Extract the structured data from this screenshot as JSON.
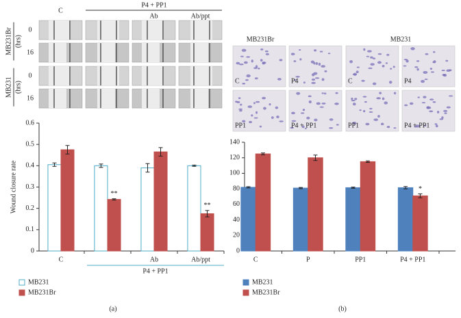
{
  "chart_data": [
    {
      "type": "bar",
      "y_label": "Wound closure rate",
      "categories": [
        "C",
        null,
        "Ab",
        "Ab/ppt"
      ],
      "category_groups": [
        {
          "label": "P4 + PP1",
          "from": 1,
          "to": 3
        }
      ],
      "series": [
        {
          "name": "MB231",
          "color": "#4bacc6",
          "fill": "#ffffff",
          "values": [
            0.405,
            0.4,
            0.39,
            0.4
          ],
          "errors": [
            0.008,
            0.008,
            0.02,
            0.003
          ]
        },
        {
          "name": "MB231Br",
          "color": "#c0504d",
          "values": [
            0.475,
            0.242,
            0.465,
            0.175
          ],
          "errors": [
            0.02,
            0.003,
            0.02,
            0.015
          ],
          "value_notes": [
            null,
            "**",
            null,
            "**"
          ]
        }
      ],
      "ylim": [
        0,
        0.6
      ],
      "yticks": [
        0,
        0.1,
        0.2,
        0.3,
        0.4,
        0.5,
        0.6
      ],
      "grid": false,
      "legend": "bottom-left"
    },
    {
      "type": "bar",
      "categories": [
        "C",
        "P",
        "PP1",
        "P4 + PP1"
      ],
      "series": [
        {
          "name": "MB231",
          "color": "#4f81bd",
          "values": [
            82,
            81,
            81.5,
            81.5
          ],
          "errors": [
            0.8,
            0.8,
            0.8,
            1.5
          ]
        },
        {
          "name": "MB231Br",
          "color": "#c0504d",
          "values": [
            125,
            120,
            115,
            71
          ],
          "errors": [
            1.2,
            3.5,
            1,
            2.5
          ],
          "value_notes": [
            null,
            null,
            null,
            "*"
          ]
        }
      ],
      "ylim": [
        0,
        140
      ],
      "yticks": [
        0,
        20,
        40,
        60,
        80,
        100,
        120,
        140
      ],
      "grid": false,
      "legend": "bottom-left"
    }
  ],
  "figure_a": {
    "panel_label": "(a)",
    "group_label": "P4 + PP1",
    "column_labels": [
      "C",
      null,
      "Ab",
      "Ab/ppt"
    ],
    "row_groups": [
      {
        "name": "MB231Br",
        "unit": "(hrs)",
        "times": [
          "0",
          "16"
        ]
      },
      {
        "name": "MB231",
        "unit": "(hrs)",
        "times": [
          "0",
          "16"
        ]
      }
    ]
  },
  "figure_b": {
    "panel_label": "(b)",
    "column_labels": [
      "MB231Br",
      "MB231"
    ],
    "images": [
      [
        "C",
        "P4",
        "C",
        "P4"
      ],
      [
        "PP1",
        "P4 + PP1",
        "PP1",
        "P4 + PP1"
      ]
    ]
  }
}
